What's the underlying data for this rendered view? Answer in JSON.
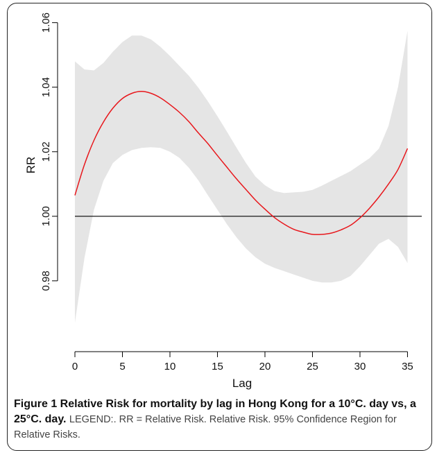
{
  "chart_data": {
    "type": "line",
    "xlabel": "Lag",
    "ylabel": "RR",
    "xlim": [
      0,
      36.5
    ],
    "ylim": [
      0.966,
      1.061
    ],
    "x_ticks": [
      0,
      5,
      10,
      15,
      20,
      25,
      30,
      35
    ],
    "y_ticks": [
      0.98,
      1.0,
      1.02,
      1.04,
      1.06
    ],
    "y_tick_labels": [
      "0.98",
      "1.00",
      "1.02",
      "1.04",
      "1.06"
    ],
    "reference_line": 1.0,
    "colors": {
      "estimate": "#e8161b",
      "band": "#e5e5e5",
      "reference": "#000000"
    },
    "grid": false,
    "series": [
      {
        "kind": "line",
        "x": [
          0,
          1,
          2,
          3,
          4,
          5,
          6,
          7,
          8,
          9,
          10,
          11,
          12,
          13,
          14,
          15,
          16,
          17,
          18,
          19,
          20,
          21,
          22,
          23,
          24,
          25,
          26,
          27,
          28,
          29,
          30,
          31,
          32,
          33,
          34,
          35
        ],
        "values": [
          1.0065,
          1.016,
          1.0235,
          1.0292,
          1.0335,
          1.0365,
          1.0381,
          1.0387,
          1.0381,
          1.0367,
          1.0346,
          1.0322,
          1.0293,
          1.0258,
          1.0225,
          1.0188,
          1.0152,
          1.0116,
          1.0083,
          1.005,
          1.0022,
          0.9996,
          0.9976,
          0.996,
          0.9951,
          0.9944,
          0.9944,
          0.9948,
          0.9958,
          0.9972,
          0.9995,
          1.0025,
          1.006,
          1.01,
          1.0145,
          1.021
        ]
      },
      {
        "kind": "band",
        "x": [
          0,
          1,
          2,
          3,
          4,
          5,
          6,
          7,
          8,
          9,
          10,
          11,
          12,
          13,
          14,
          15,
          16,
          17,
          18,
          19,
          20,
          21,
          22,
          23,
          24,
          25,
          26,
          27,
          28,
          29,
          30,
          31,
          32,
          33,
          34,
          35
        ],
        "upper": [
          1.048,
          1.0455,
          1.0452,
          1.0475,
          1.051,
          1.054,
          1.056,
          1.056,
          1.0548,
          1.0525,
          1.0497,
          1.0466,
          1.0435,
          1.0398,
          1.0356,
          1.031,
          1.0262,
          1.0213,
          1.0165,
          1.0123,
          1.0096,
          1.0078,
          1.0072,
          1.0074,
          1.0076,
          1.0082,
          1.0095,
          1.011,
          1.0125,
          1.014,
          1.016,
          1.018,
          1.021,
          1.028,
          1.04,
          1.0575
        ],
        "lower": [
          0.967,
          0.987,
          1.002,
          1.011,
          1.0165,
          1.019,
          1.0205,
          1.0212,
          1.0214,
          1.0212,
          1.02,
          1.0181,
          1.015,
          1.0111,
          1.0065,
          1.002,
          0.9975,
          0.9935,
          0.99,
          0.9873,
          0.9853,
          0.984,
          0.983,
          0.982,
          0.981,
          0.98,
          0.9795,
          0.9795,
          0.98,
          0.9815,
          0.9845,
          0.988,
          0.9915,
          0.993,
          0.9905,
          0.9855
        ]
      }
    ]
  },
  "caption": {
    "bold_prefix": "Figure 1 Relative Risk for mortality by lag in Hong Kong for a 10°C. day vs, a 25°C. day.",
    "legend_text": "LEGEND:. RR = Relative Risk. Relative Risk. 95% Confidence Region for Relative Risks."
  }
}
